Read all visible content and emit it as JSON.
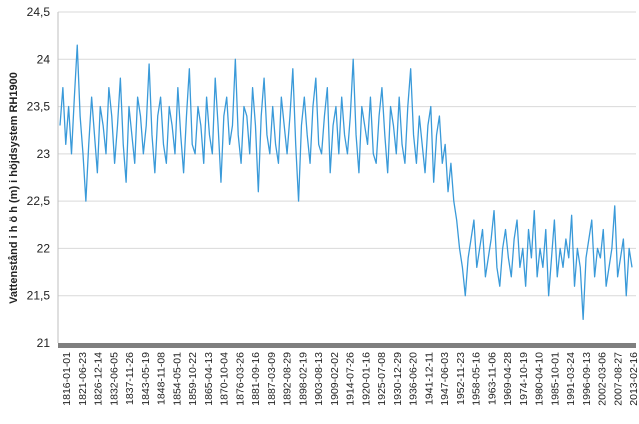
{
  "chart_data": {
    "type": "line",
    "title": "",
    "xlabel": "",
    "ylabel": "Vattenstånd i h ö h (m) i höjdsystem RH1900",
    "ylim": [
      21,
      24.5
    ],
    "yticks": [
      "21",
      "21,5",
      "22",
      "22,5",
      "23",
      "23,5",
      "24",
      "24,5"
    ],
    "yticks_values": [
      21,
      21.5,
      22,
      22.5,
      23,
      23.5,
      24,
      24.5
    ],
    "grid": true,
    "line_color": "#3a9ad9",
    "axis_color": "#7f7f7f",
    "xtick_labels": [
      "1816-01-01",
      "1821-06-23",
      "1826-12-14",
      "1832-06-05",
      "1837-11-26",
      "1843-05-19",
      "1848-11-08",
      "1854-05-01",
      "1859-10-22",
      "1865-04-13",
      "1870-10-04",
      "1876-03-26",
      "1881-09-16",
      "1887-03-09",
      "1892-08-29",
      "1898-02-19",
      "1903-08-13",
      "1909-02-02",
      "1914-07-26",
      "1920-01-16",
      "1925-07-08",
      "1930-12-29",
      "1936-06-20",
      "1941-12-11",
      "1947-06-03",
      "1952-11-23",
      "1958-05-16",
      "1963-11-06",
      "1969-04-28",
      "1974-10-19",
      "1980-04-10",
      "1985-10-01",
      "1991-03-24",
      "1996-09-13",
      "2002-03-06",
      "2007-08-27",
      "2013-02-16"
    ],
    "series": [
      {
        "x_start_year": 1816,
        "x_end_year": 2017,
        "values": [
          23.3,
          23.7,
          23.1,
          23.5,
          23.0,
          23.6,
          24.15,
          23.4,
          23.0,
          22.5,
          23.1,
          23.6,
          23.2,
          22.8,
          23.5,
          23.3,
          23.0,
          23.7,
          23.4,
          22.9,
          23.3,
          23.8,
          23.1,
          22.7,
          23.5,
          23.2,
          22.9,
          23.6,
          23.4,
          23.0,
          23.3,
          23.95,
          23.2,
          22.8,
          23.4,
          23.6,
          23.1,
          22.9,
          23.5,
          23.3,
          23.0,
          23.7,
          23.2,
          22.8,
          23.4,
          23.9,
          23.1,
          23.0,
          23.5,
          23.3,
          22.9,
          23.6,
          23.2,
          23.0,
          23.8,
          23.3,
          22.7,
          23.4,
          23.6,
          23.1,
          23.3,
          24.0,
          23.2,
          22.9,
          23.5,
          23.4,
          23.0,
          23.7,
          23.3,
          22.6,
          23.4,
          23.8,
          23.2,
          23.0,
          23.5,
          23.1,
          22.9,
          23.6,
          23.3,
          23.0,
          23.4,
          23.9,
          23.1,
          22.5,
          23.3,
          23.6,
          23.2,
          22.9,
          23.5,
          23.8,
          23.1,
          23.0,
          23.4,
          23.7,
          22.8,
          23.3,
          23.5,
          23.0,
          23.6,
          23.2,
          23.0,
          23.4,
          24.0,
          23.2,
          22.8,
          23.5,
          23.3,
          23.1,
          23.6,
          23.0,
          22.9,
          23.4,
          23.7,
          23.2,
          22.8,
          23.5,
          23.3,
          23.0,
          23.6,
          23.1,
          22.9,
          23.5,
          23.9,
          23.2,
          22.9,
          23.4,
          23.1,
          22.8,
          23.3,
          23.5,
          22.7,
          23.2,
          23.4,
          22.9,
          23.1,
          22.6,
          22.9,
          22.5,
          22.3,
          22.0,
          21.8,
          21.5,
          21.9,
          22.1,
          22.3,
          21.8,
          22.0,
          22.2,
          21.7,
          21.9,
          22.1,
          22.4,
          21.8,
          21.6,
          22.0,
          22.2,
          21.9,
          21.7,
          22.1,
          22.3,
          21.8,
          22.0,
          21.6,
          22.2,
          21.9,
          22.4,
          21.7,
          22.0,
          21.8,
          22.2,
          21.5,
          21.9,
          22.3,
          21.7,
          22.0,
          21.8,
          22.1,
          21.9,
          22.35,
          21.6,
          22.0,
          21.8,
          21.25,
          21.9,
          22.1,
          22.3,
          21.7,
          22.0,
          21.9,
          22.2,
          21.6,
          21.8,
          22.0,
          22.45,
          21.7,
          21.9,
          22.1,
          21.5,
          22.0,
          21.8
        ]
      }
    ]
  }
}
